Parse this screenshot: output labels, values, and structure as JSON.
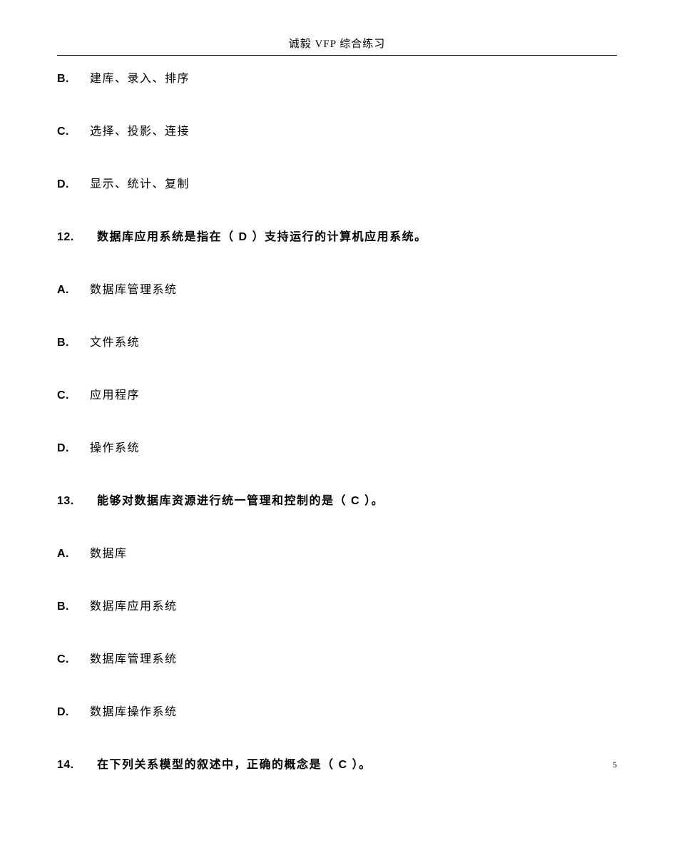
{
  "header": "诚毅 VFP 综合练习",
  "page_number": "5",
  "items": [
    {
      "type": "option",
      "letter": "B.",
      "text": "建库、录入、排序"
    },
    {
      "type": "option",
      "letter": "C.",
      "text": "选择、投影、连接"
    },
    {
      "type": "option",
      "letter": "D.",
      "text": "显示、统计、复制"
    },
    {
      "type": "question",
      "num": "12.",
      "prefix": "数据库应用系统是指在（",
      "answer": "D",
      "suffix": "）支持运行的计算机应用系统。"
    },
    {
      "type": "option",
      "letter": "A.",
      "text": "数据库管理系统"
    },
    {
      "type": "option",
      "letter": "B.",
      "text": "文件系统"
    },
    {
      "type": "option",
      "letter": "C.",
      "text": "应用程序"
    },
    {
      "type": "option",
      "letter": "D.",
      "text": "操作系统"
    },
    {
      "type": "question",
      "num": "13.",
      "prefix": "能够对数据库资源进行统一管理和控制的是（",
      "answer": "C",
      "suffix": "）。"
    },
    {
      "type": "option",
      "letter": "A.",
      "text": "数据库"
    },
    {
      "type": "option",
      "letter": "B.",
      "text": "数据库应用系统"
    },
    {
      "type": "option",
      "letter": "C.",
      "text": "数据库管理系统"
    },
    {
      "type": "option",
      "letter": "D.",
      "text": "数据库操作系统"
    },
    {
      "type": "question",
      "num": "14.",
      "prefix": "在下列关系模型的叙述中，正确的概念是（",
      "answer": "C",
      "suffix": "）。"
    }
  ]
}
